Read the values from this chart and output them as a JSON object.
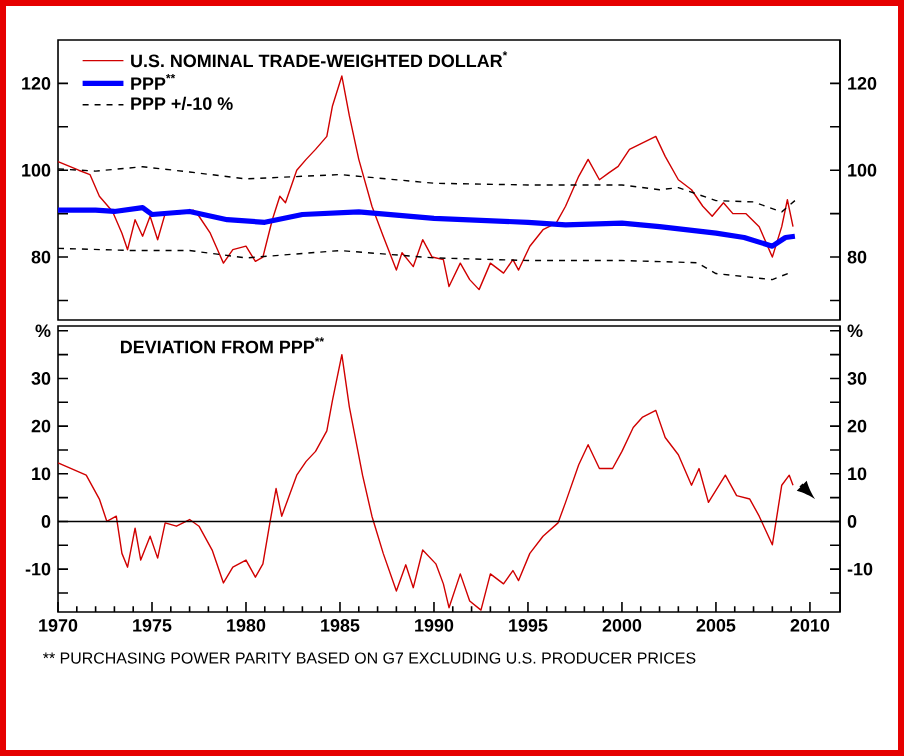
{
  "chart_data": [
    {
      "type": "line",
      "xlim": [
        1970,
        2011.6
      ],
      "ylim": [
        65.5,
        130
      ],
      "yticks": [
        {
          "value": 70,
          "label": null
        },
        80,
        {
          "value": 90,
          "label": null
        },
        100,
        {
          "value": 110,
          "label": null
        },
        120
      ],
      "y2lim": [
        65.5,
        130
      ],
      "y2ticks": [
        {
          "value": 70,
          "label": null
        },
        80,
        {
          "value": 90,
          "label": null
        },
        100,
        {
          "value": 110,
          "label": null
        },
        120
      ],
      "tick_labels": "y",
      "legend": "top left",
      "series": [
        {
          "name": "U.S. NOMINAL TRADE-WEIGHTED DOLLAR$^{*}$",
          "color": "#d00000",
          "line_style": "solid",
          "x": [
            1970.0,
            1971.1,
            1971.7,
            1972.2,
            1972.9,
            1973.4,
            1973.7,
            1974.1,
            1974.5,
            1974.9,
            1975.3,
            1975.7,
            1976.5,
            1977.2,
            1977.5,
            1978.1,
            1978.8,
            1979.3,
            1980.0,
            1980.5,
            1980.9,
            1981.4,
            1981.8,
            1982.1,
            1982.7,
            1983.2,
            1983.7,
            1984.3,
            1984.6,
            1985.1,
            1985.5,
            1986.0,
            1986.7,
            1987.3,
            1988.0,
            1988.3,
            1988.9,
            1989.4,
            1989.9,
            1990.5,
            1990.8,
            1991.4,
            1991.9,
            1992.4,
            1993.0,
            1993.7,
            1994.2,
            1994.5,
            1995.1,
            1995.8,
            1996.5,
            1997.0,
            1997.7,
            1998.2,
            1998.8,
            1999.3,
            1999.8,
            2000.4,
            2001.1,
            2001.8,
            2002.3,
            2003.0,
            2003.7,
            2004.3,
            2004.8,
            2005.4,
            2005.9,
            2006.6,
            2007.3,
            2008.0,
            2008.5,
            2008.8,
            2009.1
          ],
          "values": [
            102,
            100,
            99,
            94,
            90.5,
            85.5,
            81.7,
            88.6,
            84.8,
            89.4,
            84,
            90,
            90,
            90.8,
            89.4,
            85.5,
            78.6,
            81.7,
            82.5,
            79,
            80,
            88.6,
            94,
            92.5,
            100,
            102.5,
            104.8,
            107.8,
            114.8,
            121.7,
            112.5,
            102.5,
            91.7,
            84.8,
            77,
            81,
            77.8,
            84,
            80,
            79.4,
            73.2,
            78.6,
            74.8,
            72.5,
            78.6,
            76.3,
            79.4,
            77,
            82.5,
            86.3,
            87.8,
            91.7,
            98.6,
            102.5,
            97.8,
            99.4,
            100.9,
            104.8,
            106.3,
            107.8,
            103.2,
            97.8,
            95.5,
            91.7,
            89.4,
            92.5,
            90,
            90,
            87,
            80,
            87,
            93.2,
            87
          ]
        },
        {
          "name": "PPP$^{**}$",
          "color": "#0000ff",
          "line_style": "solid",
          "x": [
            1970,
            1972,
            1973,
            1974.5,
            1975,
            1977,
            1979,
            1981,
            1983,
            1986,
            1990,
            1995,
            1997,
            2000,
            2002,
            2005,
            2006.5,
            2008,
            2008.7,
            2009.2
          ],
          "values": [
            90.8,
            90.8,
            90.5,
            91.4,
            89.8,
            90.5,
            88.6,
            88,
            89.8,
            90.4,
            88.9,
            88,
            87.4,
            87.8,
            87,
            85.5,
            84.5,
            82.5,
            84.5,
            84.8
          ]
        },
        {
          "name": "PPP +/-10 %",
          "color": "#000000",
          "line_style": "dashed",
          "x": [
            1970,
            1972,
            1974.5,
            1977,
            1980,
            1985,
            1990,
            1995,
            2000,
            2002,
            2003,
            2005,
            2007,
            2008.5,
            2009.2
          ],
          "values": [
            100.3,
            99.8,
            100.8,
            99.6,
            98,
            99,
            97,
            96.6,
            96.6,
            95.5,
            96,
            93,
            92.7,
            90.4,
            93
          ]
        },
        {
          "color": "#000000",
          "line_style": "dashed",
          "x": [
            1970,
            1974,
            1977,
            1980,
            1985,
            1990,
            1995,
            2000,
            2004,
            2005,
            2008,
            2009
          ],
          "values": [
            82,
            81.5,
            81.5,
            79.8,
            81.5,
            79.8,
            79.2,
            79.2,
            78.7,
            76.2,
            74.8,
            76.5
          ]
        }
      ]
    },
    {
      "type": "line",
      "title": "DEVIATION FROM PPP$^{**}$",
      "xlim": [
        1970,
        2011.6
      ],
      "xticks": [
        1970,
        1975,
        1980,
        1985,
        1990,
        1995,
        2000,
        2005,
        2010
      ],
      "ylim": [
        -19,
        41
      ],
      "yticks": [
        {
          "value": -15,
          "label": null
        },
        -10,
        {
          "value": -5,
          "label": null
        },
        0,
        {
          "value": 5,
          "label": null
        },
        10,
        {
          "value": 15,
          "label": null
        },
        20,
        {
          "value": 25,
          "label": null
        },
        30,
        {
          "value": 35,
          "label": null
        },
        {
          "value": 40,
          "label": "%"
        }
      ],
      "y2lim": [
        -19,
        41
      ],
      "y2ticks": [
        {
          "value": -15,
          "label": null
        },
        -10,
        {
          "value": -5,
          "label": null
        },
        0,
        {
          "value": 5,
          "label": null
        },
        10,
        {
          "value": 15,
          "label": null
        },
        20,
        {
          "value": 25,
          "label": null
        },
        30,
        {
          "value": 35,
          "label": null
        },
        {
          "value": 40,
          "label": "%"
        }
      ],
      "ref_lines": [
        {
          "axis": "y",
          "value": 0,
          "color": "#000000"
        }
      ],
      "annotations": [
        "** PURCHASING POWER PARITY BASED ON G7 EXCLUDING U.S. PRODUCER PRICES"
      ],
      "series": [
        {
          "color": "#d00000",
          "line_style": "solid",
          "x": [
            1970.0,
            1971.5,
            1972.2,
            1972.6,
            1973.1,
            1973.4,
            1973.7,
            1974.1,
            1974.4,
            1974.9,
            1975.3,
            1975.7,
            1976.3,
            1977.0,
            1977.5,
            1978.2,
            1978.8,
            1979.3,
            1980.0,
            1980.5,
            1980.9,
            1981.3,
            1981.6,
            1981.9,
            1982.7,
            1983.2,
            1983.7,
            1984.3,
            1984.6,
            1985.1,
            1985.5,
            1986.2,
            1986.7,
            1987.3,
            1988.0,
            1988.5,
            1988.9,
            1989.4,
            1990.1,
            1990.5,
            1990.8,
            1991.4,
            1991.9,
            1992.5,
            1993.0,
            1993.7,
            1994.2,
            1994.5,
            1995.1,
            1995.8,
            1996.6,
            1997.0,
            1997.7,
            1998.2,
            1998.8,
            1999.5,
            2000.0,
            2000.6,
            2001.1,
            2001.8,
            2002.3,
            2003.0,
            2003.7,
            2004.1,
            2004.6,
            2005.5,
            2006.1,
            2006.8,
            2007.3,
            2008.0,
            2008.5,
            2008.9,
            2009.1
          ],
          "values": [
            12.3,
            9.7,
            4.7,
            0,
            1.1,
            -6.7,
            -9.6,
            -1.4,
            -8.1,
            -3.1,
            -7.7,
            -0.3,
            -1,
            0.4,
            -1,
            -6,
            -12.9,
            -9.6,
            -8.1,
            -11.7,
            -8.9,
            0.4,
            6.9,
            1.1,
            9.7,
            12.6,
            14.7,
            19,
            25.4,
            35,
            24,
            9.7,
            1.1,
            -6.7,
            -14.6,
            -9.1,
            -13.9,
            -6,
            -8.9,
            -13.1,
            -18.1,
            -11,
            -16.7,
            -18.6,
            -11,
            -13.1,
            -10.3,
            -12.4,
            -6.7,
            -3.1,
            -0.3,
            4,
            11.9,
            16.1,
            11.1,
            11.1,
            14.7,
            19.7,
            21.9,
            23.3,
            17.6,
            14,
            7.6,
            11.1,
            4,
            9.7,
            5.4,
            4.7,
            1.1,
            -4.9,
            7.6,
            9.7,
            7.6
          ]
        }
      ]
    }
  ]
}
